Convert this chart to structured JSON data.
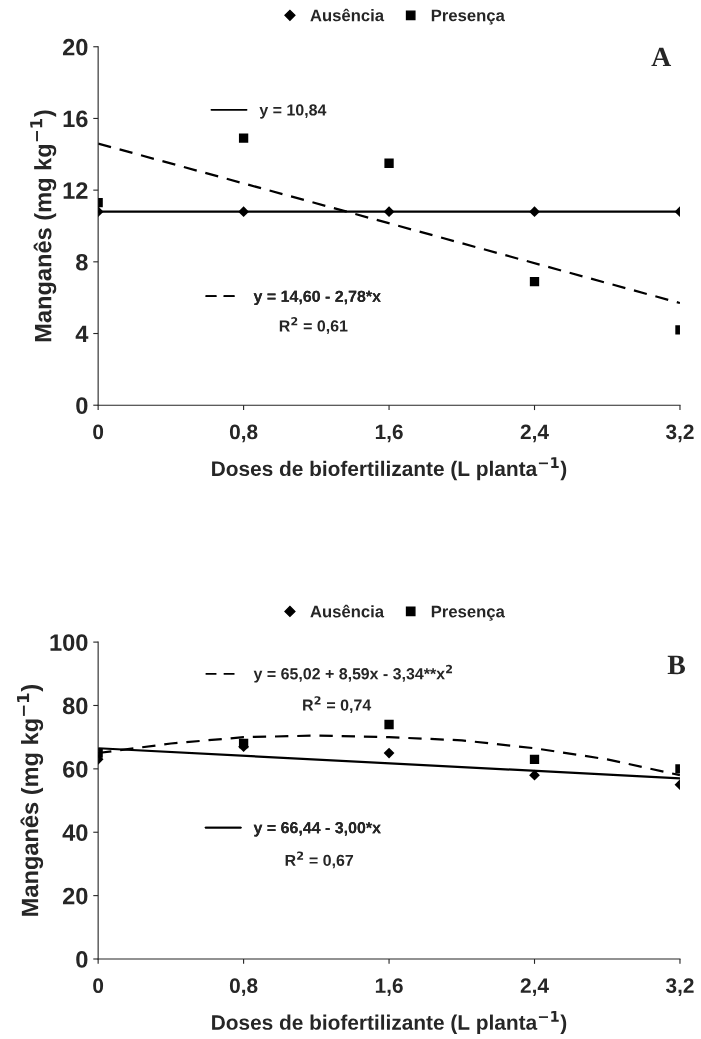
{
  "chart_data": [
    {
      "type": "scatter",
      "xlabel": "Doses de biofertilizante (L planta$^{−1}$)",
      "ylabel": "Manganês (mg kg$^{−1}$)",
      "x": [
        0,
        0.8,
        1.6,
        2.4,
        3.2
      ],
      "xlim": [
        0,
        3.2
      ],
      "ylim": [
        0,
        20
      ],
      "xticks": [
        0,
        {
          "value": 0.8,
          "label": "0,8"
        },
        {
          "value": 1.6,
          "label": "1,6"
        },
        {
          "value": 2.4,
          "label": "2,4"
        },
        {
          "value": 3.2,
          "label": "3,2"
        }
      ],
      "yticks": [
        0,
        4,
        8,
        12,
        16,
        20
      ],
      "grid": false,
      "legend": "top",
      "series": [
        {
          "name": "Ausência",
          "marker": "diamond",
          "color": "#000000",
          "values": [
            10.8,
            10.8,
            10.8,
            10.8,
            10.8
          ]
        },
        {
          "name": "Presença",
          "marker": "square",
          "color": "#000000",
          "values": [
            11.3,
            14.9,
            13.5,
            6.9,
            4.2
          ]
        },
        {
          "name": "y = 10,84",
          "type": "line",
          "marker": "none",
          "line_style": "solid",
          "color": "#000000",
          "x": [
            0,
            3.2
          ],
          "values": [
            10.8,
            10.8
          ]
        },
        {
          "name": "y = 14,60 - 2,78*x",
          "type": "line",
          "marker": "none",
          "line_style": "dashed",
          "color": "#000000",
          "x": [
            0,
            3.2
          ],
          "values": [
            14.6,
            5.7
          ]
        }
      ],
      "annotations": [
        "A",
        "R$^{2}$ = 0,61"
      ]
    },
    {
      "type": "scatter",
      "xlabel": "Doses de biofertilizante (L planta$^{−1}$)",
      "ylabel": "Manganês (mg kg$^{−1}$)",
      "x": [
        0,
        0.8,
        1.6,
        2.4,
        3.2
      ],
      "xlim": [
        0,
        3.2
      ],
      "ylim": [
        0,
        100
      ],
      "xticks": [
        0,
        {
          "value": 0.8,
          "label": "0,8"
        },
        {
          "value": 1.6,
          "label": "1,6"
        },
        {
          "value": 2.4,
          "label": "2,4"
        },
        {
          "value": 3.2,
          "label": "3,2"
        }
      ],
      "yticks": [
        0,
        20,
        40,
        60,
        80,
        100
      ],
      "grid": false,
      "legend": "top",
      "series": [
        {
          "name": "Ausência",
          "marker": "diamond",
          "color": "#000000",
          "values": [
            63,
            67,
            65,
            58,
            55
          ]
        },
        {
          "name": "Presença",
          "marker": "square",
          "color": "#000000",
          "values": [
            65,
            68,
            74,
            63,
            60
          ]
        },
        {
          "name": "y = 65,02 + 8,59x - 3,34**x$^{2}$",
          "type": "line",
          "marker": "none",
          "line_style": "dashed",
          "color": "#000000",
          "x": [
            0,
            0.4,
            0.8,
            1.2,
            1.6,
            2.0,
            2.4,
            2.8,
            3.2
          ],
          "values": [
            65,
            68,
            70,
            70.5,
            70,
            69,
            66.5,
            63,
            58
          ]
        },
        {
          "name": "y = 66,44 - 3,00*x",
          "type": "line",
          "marker": "none",
          "line_style": "solid",
          "color": "#000000",
          "x": [
            0,
            3.2
          ],
          "values": [
            66.5,
            57
          ]
        }
      ],
      "annotations": [
        "B",
        "R$^{2}$ = 0,74",
        "R$^{2}$ = 0,67"
      ]
    }
  ]
}
